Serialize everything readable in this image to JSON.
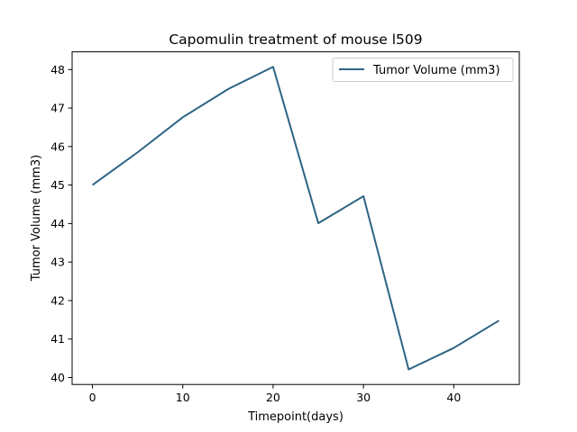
{
  "chart_data": {
    "type": "line",
    "title": "Capomulin treatment of mouse l509",
    "xlabel": "Timepoint(days)",
    "ylabel": "Tumor Volume (mm3)",
    "x": [
      0,
      5,
      10,
      15,
      20,
      25,
      30,
      35,
      40,
      45
    ],
    "series": [
      {
        "name": "Tumor Volume (mm3)",
        "values": [
          45.0,
          45.85,
          46.76,
          47.49,
          48.07,
          44.01,
          44.71,
          40.21,
          40.77,
          41.48
        ],
        "color": "#2e6485"
      }
    ],
    "xlim": [
      -2.25,
      47.25
    ],
    "ylim": [
      39.82,
      48.46
    ],
    "xticks": [
      0,
      10,
      20,
      30,
      40
    ],
    "yticks": [
      40,
      41,
      42,
      43,
      44,
      45,
      46,
      47,
      48
    ],
    "grid": false,
    "legend_position": "top-right"
  }
}
